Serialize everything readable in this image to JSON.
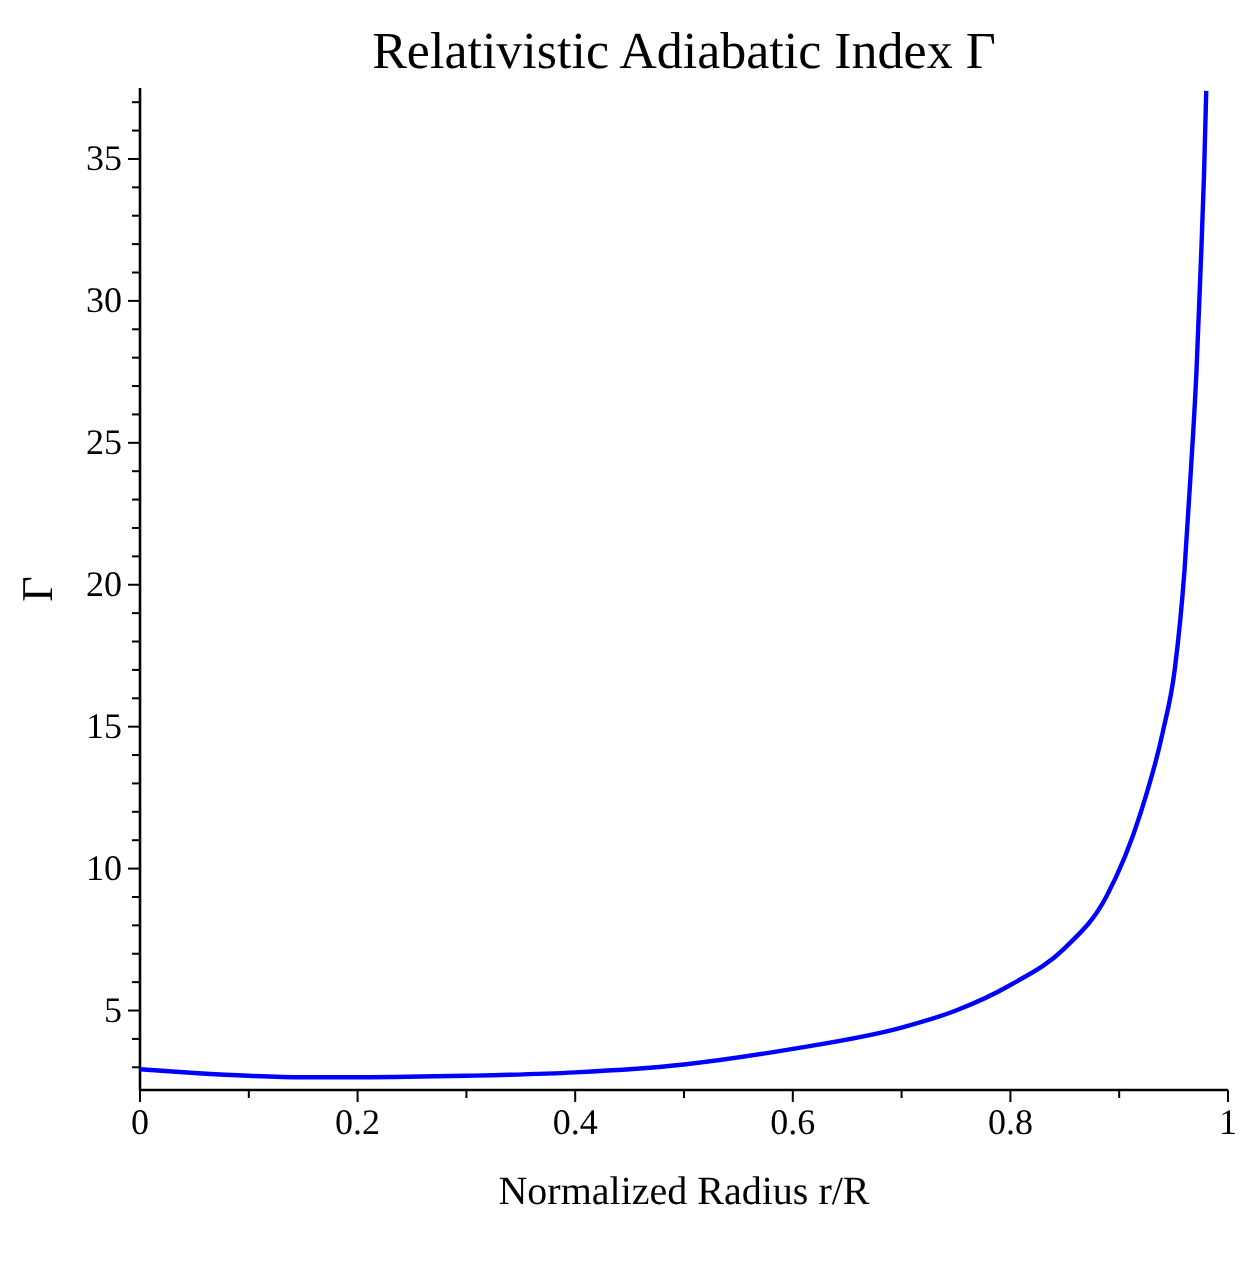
{
  "chart_data": {
    "type": "line",
    "title": "Relativistic Adiabatic Index Γ",
    "xlabel": "Normalized Radius r/R",
    "ylabel": "Γ",
    "x": [
      0,
      0.05,
      0.1,
      0.15,
      0.2,
      0.3,
      0.4,
      0.5,
      0.6,
      0.7,
      0.75,
      0.8,
      0.85,
      0.888,
      0.92,
      0.94,
      0.951,
      0.96,
      0.966,
      0.971,
      0.975,
      0.978,
      0.98
    ],
    "series": [
      {
        "color": "#0000ff",
        "values": [
          2.93,
          2.8,
          2.7,
          2.65,
          2.65,
          2.7,
          2.82,
          3.1,
          3.65,
          4.4,
          5.0,
          5.9,
          7.2,
          9.0,
          12.0,
          14.8,
          17.0,
          20.5,
          24.1,
          27.5,
          31.3,
          34.5,
          37.4
        ]
      }
    ],
    "xlim": [
      0,
      1
    ],
    "ylim": [
      2.2,
      37.5
    ],
    "xticks": [
      0,
      {
        "value": 0.1,
        "label": null
      },
      0.2,
      {
        "value": 0.3,
        "label": null
      },
      0.4,
      {
        "value": 0.5,
        "label": null
      },
      0.6,
      {
        "value": 0.7,
        "label": null
      },
      0.8,
      {
        "value": 0.9,
        "label": null
      },
      1
    ],
    "yticks": [
      {
        "value": 3,
        "label": null
      },
      {
        "value": 4,
        "label": null
      },
      5,
      {
        "value": 6,
        "label": null
      },
      {
        "value": 7,
        "label": null
      },
      {
        "value": 8,
        "label": null
      },
      {
        "value": 9,
        "label": null
      },
      10,
      {
        "value": 11,
        "label": null
      },
      {
        "value": 12,
        "label": null
      },
      {
        "value": 13,
        "label": null
      },
      {
        "value": 14,
        "label": null
      },
      15,
      {
        "value": 16,
        "label": null
      },
      {
        "value": 17,
        "label": null
      },
      {
        "value": 18,
        "label": null
      },
      {
        "value": 19,
        "label": null
      },
      20,
      {
        "value": 21,
        "label": null
      },
      {
        "value": 22,
        "label": null
      },
      {
        "value": 23,
        "label": null
      },
      {
        "value": 24,
        "label": null
      },
      25,
      {
        "value": 26,
        "label": null
      },
      {
        "value": 27,
        "label": null
      },
      {
        "value": 28,
        "label": null
      },
      {
        "value": 29,
        "label": null
      },
      30,
      {
        "value": 31,
        "label": null
      },
      {
        "value": 32,
        "label": null
      },
      {
        "value": 33,
        "label": null
      },
      {
        "value": 34,
        "label": null
      },
      35,
      {
        "value": 36,
        "label": null
      },
      {
        "value": 37,
        "label": null
      }
    ],
    "grid": false,
    "marker": "none",
    "line_style": "solid"
  }
}
